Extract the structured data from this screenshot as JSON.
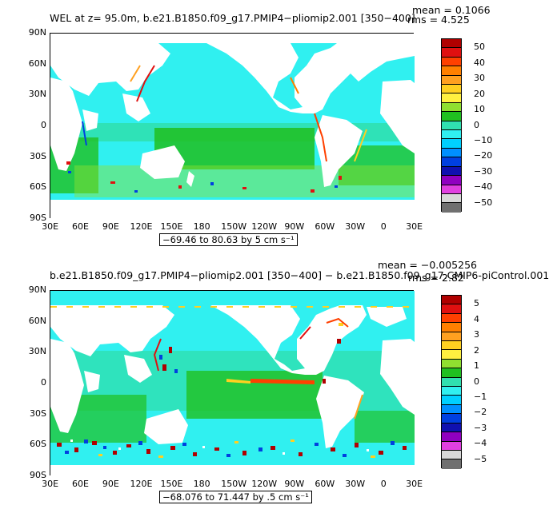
{
  "colors": [
    "#b00000",
    "#e01010",
    "#ff4000",
    "#ff8000",
    "#ffa020",
    "#ffd020",
    "#fff040",
    "#90e030",
    "#20c020",
    "#30e0b0",
    "#30f0f0",
    "#00d0ff",
    "#0090ff",
    "#0040e0",
    "#1010b0",
    "#9000c0",
    "#e040e0",
    "#d8d8d8",
    "#707070"
  ],
  "top": {
    "title": "WEL at z=  95.0m, b.e21.B1850.f09_g17.PMIP4−pliomip2.001 [350−400]",
    "mean": "mean = 0.1066",
    "rms": "rms = 4.525",
    "range": "−69.46 to 80.63 by 5 cm s⁻¹",
    "colorbar_labels": [
      "50",
      "40",
      "30",
      "20",
      "10",
      "0",
      "−10",
      "−20",
      "−30",
      "−40",
      "−50"
    ]
  },
  "bottom": {
    "title": "b.e21.B1850.f09_g17.PMIP4−pliomip2.001 [350−400] − b.e21.B1850.f09_g17.CMIP6-piControl.001",
    "mean": "mean = −0.005256",
    "rms": "rms = 2.82",
    "range": "−68.076 to 71.447 by .5 cm s⁻¹",
    "colorbar_labels": [
      "5",
      "4",
      "3",
      "2",
      "1",
      "0",
      "−1",
      "−2",
      "−3",
      "−4",
      "−5"
    ]
  },
  "lat_labels": [
    "90N",
    "60N",
    "30N",
    "0",
    "30S",
    "60S",
    "90S"
  ],
  "lon_labels": [
    "30E",
    "60E",
    "90E",
    "120E",
    "150E",
    "180",
    "150W",
    "120W",
    "90W",
    "60W",
    "30W",
    "0",
    "30E"
  ]
}
